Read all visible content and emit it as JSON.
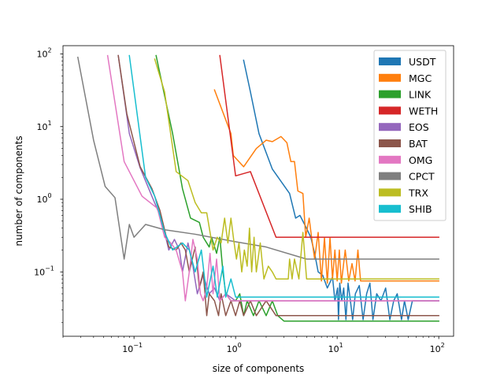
{
  "chart_data": {
    "type": "line",
    "title": "",
    "xlabel": "size of components",
    "ylabel": "number of components",
    "xscale": "log",
    "yscale": "log",
    "xlim": [
      0.02,
      140
    ],
    "ylim": [
      0.013,
      130
    ],
    "grid": false,
    "legend_position": "top-right",
    "x_ticks": [
      {
        "value": 0.1,
        "base": "10",
        "exp": "−1"
      },
      {
        "value": 1,
        "base": "10",
        "exp": "0"
      },
      {
        "value": 10,
        "base": "10",
        "exp": "1"
      },
      {
        "value": 100,
        "base": "10",
        "exp": "2"
      }
    ],
    "y_ticks": [
      {
        "value": 0.1,
        "base": "10",
        "exp": "−1"
      },
      {
        "value": 1,
        "base": "10",
        "exp": "0"
      },
      {
        "value": 10,
        "base": "10",
        "exp": "1"
      },
      {
        "value": 100,
        "base": "10",
        "exp": "2"
      }
    ],
    "series": [
      {
        "name": "USDT",
        "color": "#1f77b4",
        "points": [
          [
            1.2,
            82
          ],
          [
            1.4,
            30
          ],
          [
            1.7,
            8
          ],
          [
            2.3,
            2.6
          ],
          [
            3.4,
            1.2
          ],
          [
            3.9,
            0.55
          ],
          [
            4.3,
            0.6
          ],
          [
            4.9,
            0.42
          ],
          [
            5.5,
            0.3
          ],
          [
            6.0,
            0.18
          ],
          [
            6.5,
            0.1
          ],
          [
            7.2,
            0.09
          ],
          [
            8.0,
            0.06
          ],
          [
            9.0,
            0.085
          ],
          [
            9.5,
            0.04
          ],
          [
            10.1,
            0.06
          ],
          [
            10.3,
            0.022
          ],
          [
            10.6,
            0.07
          ],
          [
            11.1,
            0.04
          ],
          [
            11.6,
            0.06
          ],
          [
            12.2,
            0.022
          ],
          [
            12.8,
            0.07
          ],
          [
            13.5,
            0.04
          ],
          [
            14.2,
            0.022
          ],
          [
            15.1,
            0.05
          ],
          [
            16.5,
            0.065
          ],
          [
            18,
            0.022
          ],
          [
            19.5,
            0.05
          ],
          [
            21,
            0.07
          ],
          [
            22.5,
            0.022
          ],
          [
            24.5,
            0.05
          ],
          [
            27,
            0.04
          ],
          [
            30,
            0.06
          ],
          [
            33,
            0.022
          ],
          [
            36,
            0.04
          ],
          [
            39,
            0.05
          ],
          [
            43,
            0.022
          ],
          [
            46,
            0.04
          ],
          [
            50,
            0.022
          ],
          [
            55,
            0.04
          ],
          [
            100,
            0.04
          ]
        ]
      },
      {
        "name": "MGC",
        "color": "#ff7f0e",
        "points": [
          [
            0.62,
            32
          ],
          [
            0.9,
            8
          ],
          [
            0.95,
            4
          ],
          [
            1.2,
            2.8
          ],
          [
            1.6,
            5
          ],
          [
            2.0,
            6.5
          ],
          [
            2.3,
            6.2
          ],
          [
            2.8,
            7.3
          ],
          [
            3.2,
            6
          ],
          [
            3.5,
            3.3
          ],
          [
            3.8,
            3.3
          ],
          [
            4.1,
            1.3
          ],
          [
            4.6,
            1.2
          ],
          [
            4.9,
            0.3
          ],
          [
            5.3,
            0.55
          ],
          [
            5.6,
            0.3
          ],
          [
            6.0,
            0.15
          ],
          [
            6.5,
            0.35
          ],
          [
            7.0,
            0.075
          ],
          [
            7.5,
            0.3
          ],
          [
            8.0,
            0.07
          ],
          [
            8.5,
            0.3
          ],
          [
            9.0,
            0.08
          ],
          [
            9.5,
            0.2
          ],
          [
            10,
            0.075
          ],
          [
            10.5,
            0.2
          ],
          [
            11,
            0.07
          ],
          [
            12,
            0.2
          ],
          [
            13,
            0.075
          ],
          [
            14,
            0.13
          ],
          [
            15,
            0.075
          ],
          [
            16,
            0.2
          ],
          [
            17,
            0.075
          ],
          [
            100,
            0.075
          ]
        ]
      },
      {
        "name": "LINK",
        "color": "#2ca02c",
        "points": [
          [
            0.165,
            95
          ],
          [
            0.24,
            8
          ],
          [
            0.3,
            1.4
          ],
          [
            0.36,
            0.55
          ],
          [
            0.44,
            0.48
          ],
          [
            0.48,
            0.3
          ],
          [
            0.55,
            0.22
          ],
          [
            0.58,
            0.3
          ],
          [
            0.65,
            0.18
          ],
          [
            0.7,
            0.3
          ],
          [
            0.75,
            0.1
          ],
          [
            0.8,
            0.05
          ],
          [
            0.9,
            0.04
          ],
          [
            1.0,
            0.04
          ],
          [
            1.1,
            0.05
          ],
          [
            1.2,
            0.025
          ],
          [
            1.3,
            0.04
          ],
          [
            1.5,
            0.025
          ],
          [
            1.7,
            0.04
          ],
          [
            2.0,
            0.025
          ],
          [
            2.3,
            0.04
          ],
          [
            2.6,
            0.025
          ],
          [
            3.0,
            0.021
          ],
          [
            4.0,
            0.021
          ],
          [
            10,
            0.021
          ],
          [
            100,
            0.021
          ]
        ]
      },
      {
        "name": "WETH",
        "color": "#d62728",
        "points": [
          [
            0.7,
            95
          ],
          [
            1.0,
            2.1
          ],
          [
            1.4,
            2.4
          ],
          [
            2.5,
            0.3
          ],
          [
            100,
            0.3
          ]
        ]
      },
      {
        "name": "EOS",
        "color": "#9467bd",
        "points": [
          [
            0.07,
            95
          ],
          [
            0.09,
            8
          ],
          [
            0.115,
            2.7
          ],
          [
            0.15,
            1.1
          ],
          [
            0.18,
            0.6
          ],
          [
            0.2,
            0.35
          ],
          [
            0.22,
            0.2
          ],
          [
            0.25,
            0.28
          ],
          [
            0.28,
            0.2
          ],
          [
            0.3,
            0.1
          ],
          [
            0.34,
            0.25
          ],
          [
            0.38,
            0.12
          ],
          [
            0.42,
            0.05
          ],
          [
            0.48,
            0.09
          ],
          [
            0.55,
            0.05
          ],
          [
            0.62,
            0.06
          ],
          [
            0.7,
            0.04
          ],
          [
            0.8,
            0.05
          ],
          [
            1.0,
            0.04
          ],
          [
            100,
            0.04
          ]
        ]
      },
      {
        "name": "BAT",
        "color": "#8c564b",
        "points": [
          [
            0.07,
            95
          ],
          [
            0.085,
            15
          ],
          [
            0.115,
            2.8
          ],
          [
            0.15,
            1.4
          ],
          [
            0.18,
            0.7
          ],
          [
            0.22,
            0.22
          ],
          [
            0.26,
            0.2
          ],
          [
            0.29,
            0.25
          ],
          [
            0.32,
            0.2
          ],
          [
            0.35,
            0.1
          ],
          [
            0.4,
            0.22
          ],
          [
            0.44,
            0.06
          ],
          [
            0.48,
            0.1
          ],
          [
            0.52,
            0.025
          ],
          [
            0.55,
            0.05
          ],
          [
            0.62,
            0.04
          ],
          [
            0.68,
            0.025
          ],
          [
            0.72,
            0.05
          ],
          [
            0.8,
            0.025
          ],
          [
            0.9,
            0.04
          ],
          [
            1.0,
            0.025
          ],
          [
            1.1,
            0.04
          ],
          [
            1.2,
            0.025
          ],
          [
            1.4,
            0.04
          ],
          [
            1.6,
            0.025
          ],
          [
            2.0,
            0.04
          ],
          [
            2.5,
            0.025
          ],
          [
            100,
            0.025
          ]
        ]
      },
      {
        "name": "OMG",
        "color": "#e377c2",
        "points": [
          [
            0.055,
            95
          ],
          [
            0.08,
            3.3
          ],
          [
            0.12,
            1.1
          ],
          [
            0.17,
            0.75
          ],
          [
            0.2,
            0.3
          ],
          [
            0.23,
            0.25
          ],
          [
            0.26,
            0.2
          ],
          [
            0.3,
            0.1
          ],
          [
            0.32,
            0.04
          ],
          [
            0.35,
            0.1
          ],
          [
            0.38,
            0.28
          ],
          [
            0.42,
            0.15
          ],
          [
            0.45,
            0.05
          ],
          [
            0.48,
            0.04
          ],
          [
            0.52,
            0.06
          ],
          [
            0.56,
            0.18
          ],
          [
            0.6,
            0.05
          ],
          [
            0.65,
            0.15
          ],
          [
            0.7,
            0.04
          ],
          [
            0.8,
            0.05
          ],
          [
            0.9,
            0.04
          ],
          [
            100,
            0.04
          ]
        ]
      },
      {
        "name": "CPCT",
        "color": "#7f7f7f",
        "points": [
          [
            0.028,
            90
          ],
          [
            0.04,
            6.5
          ],
          [
            0.052,
            1.5
          ],
          [
            0.065,
            1.05
          ],
          [
            0.08,
            0.15
          ],
          [
            0.09,
            0.45
          ],
          [
            0.1,
            0.3
          ],
          [
            0.13,
            0.45
          ],
          [
            0.2,
            0.38
          ],
          [
            0.4,
            0.33
          ],
          [
            1,
            0.26
          ],
          [
            2,
            0.22
          ],
          [
            5,
            0.15
          ],
          [
            100,
            0.15
          ]
        ]
      },
      {
        "name": "TRX",
        "color": "#bcbd22",
        "points": [
          [
            0.16,
            85
          ],
          [
            0.2,
            30
          ],
          [
            0.26,
            2.4
          ],
          [
            0.34,
            1.8
          ],
          [
            0.4,
            0.9
          ],
          [
            0.46,
            0.65
          ],
          [
            0.52,
            0.65
          ],
          [
            0.6,
            0.2
          ],
          [
            0.66,
            0.3
          ],
          [
            0.72,
            0.25
          ],
          [
            0.78,
            0.55
          ],
          [
            0.84,
            0.25
          ],
          [
            0.9,
            0.55
          ],
          [
            0.96,
            0.27
          ],
          [
            1.02,
            0.15
          ],
          [
            1.08,
            0.25
          ],
          [
            1.15,
            0.1
          ],
          [
            1.22,
            0.2
          ],
          [
            1.3,
            0.12
          ],
          [
            1.37,
            0.4
          ],
          [
            1.44,
            0.1
          ],
          [
            1.52,
            0.3
          ],
          [
            1.6,
            0.1
          ],
          [
            1.75,
            0.25
          ],
          [
            1.9,
            0.08
          ],
          [
            2.1,
            0.12
          ],
          [
            2.3,
            0.1
          ],
          [
            2.5,
            0.08
          ],
          [
            3.3,
            0.08
          ],
          [
            3.4,
            0.15
          ],
          [
            3.6,
            0.08
          ],
          [
            3.8,
            0.15
          ],
          [
            4.2,
            0.08
          ],
          [
            4.6,
            0.35
          ],
          [
            5,
            0.08
          ],
          [
            100,
            0.08
          ]
        ]
      },
      {
        "name": "SHIB",
        "color": "#17becf",
        "points": [
          [
            0.09,
            95
          ],
          [
            0.13,
            2
          ],
          [
            0.16,
            1.1
          ],
          [
            0.2,
            0.35
          ],
          [
            0.24,
            0.2
          ],
          [
            0.3,
            0.25
          ],
          [
            0.35,
            0.2
          ],
          [
            0.4,
            0.1
          ],
          [
            0.46,
            0.2
          ],
          [
            0.52,
            0.045
          ],
          [
            0.6,
            0.12
          ],
          [
            0.66,
            0.045
          ],
          [
            0.75,
            0.12
          ],
          [
            0.8,
            0.045
          ],
          [
            0.9,
            0.08
          ],
          [
            1.0,
            0.045
          ],
          [
            100,
            0.045
          ]
        ]
      }
    ]
  }
}
